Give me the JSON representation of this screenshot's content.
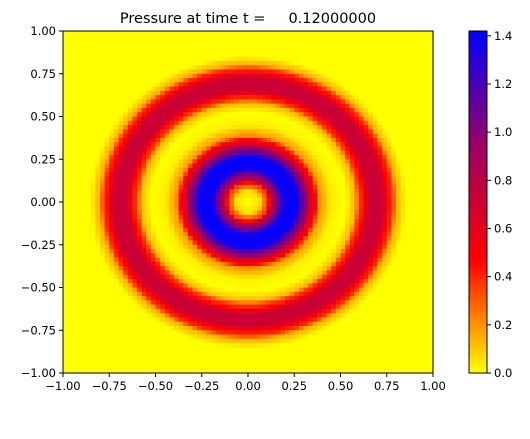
{
  "chart_data": {
    "type": "heatmap",
    "title": "Pressure at time t =     0.12000000",
    "xlabel": "",
    "ylabel": "",
    "xlim": [
      -1.0,
      1.0
    ],
    "ylim": [
      -1.0,
      1.0
    ],
    "x_ticks": [
      -1.0,
      -0.75,
      -0.5,
      -0.25,
      0.0,
      0.25,
      0.5,
      0.75,
      1.0
    ],
    "x_tick_labels": [
      "−1.00",
      "−0.75",
      "−0.50",
      "−0.25",
      "0.00",
      "0.25",
      "0.50",
      "0.75",
      "1.00"
    ],
    "y_ticks": [
      1.0,
      0.75,
      0.5,
      0.25,
      0.0,
      -0.25,
      -0.5,
      -0.75,
      -1.0
    ],
    "y_tick_labels": [
      "1.00",
      "0.75",
      "0.50",
      "0.25",
      "0.00",
      "−0.25",
      "−0.50",
      "−0.75",
      "−1.00"
    ],
    "grid": false,
    "grid_resolution": 80,
    "field": {
      "description_shape": "radially symmetric rings",
      "radial_profile": [
        {
          "r": 0.0,
          "value": 0.0
        },
        {
          "r": 0.06,
          "value": 0.05
        },
        {
          "r": 0.1,
          "value": 0.3
        },
        {
          "r": 0.14,
          "value": 0.9
        },
        {
          "r": 0.2,
          "value": 1.4
        },
        {
          "r": 0.26,
          "value": 1.4
        },
        {
          "r": 0.31,
          "value": 1.0
        },
        {
          "r": 0.35,
          "value": 0.55
        },
        {
          "r": 0.4,
          "value": 0.15
        },
        {
          "r": 0.46,
          "value": 0.02
        },
        {
          "r": 0.52,
          "value": 0.0
        },
        {
          "r": 0.57,
          "value": 0.1
        },
        {
          "r": 0.61,
          "value": 0.4
        },
        {
          "r": 0.66,
          "value": 0.72
        },
        {
          "r": 0.72,
          "value": 0.72
        },
        {
          "r": 0.77,
          "value": 0.42
        },
        {
          "r": 0.81,
          "value": 0.12
        },
        {
          "r": 0.86,
          "value": 0.0
        },
        {
          "r": 2.0,
          "value": 0.0
        }
      ]
    },
    "colorbar": {
      "min": 0.0,
      "max": 1.42,
      "ticks": [
        0.0,
        0.2,
        0.4,
        0.6,
        0.8,
        1.0,
        1.2,
        1.4
      ],
      "tick_labels": [
        "0.0",
        "0.2",
        "0.4",
        "0.6",
        "0.8",
        "1.0",
        "1.2",
        "1.4"
      ],
      "colormap": [
        {
          "value": 0.0,
          "color": "#ffff00"
        },
        {
          "value": 0.47,
          "color": "#ff0000"
        },
        {
          "value": 0.95,
          "color": "#990066"
        },
        {
          "value": 1.42,
          "color": "#0000ff"
        }
      ]
    }
  }
}
